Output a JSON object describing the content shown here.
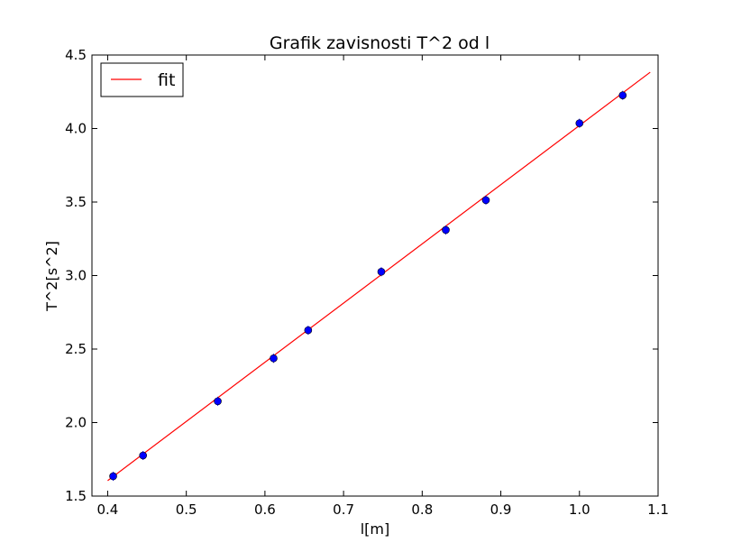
{
  "chart_data": {
    "type": "scatter",
    "title": "Grafik zavisnosti T^2 od l",
    "xlabel": "l[m]",
    "ylabel": "T^2[s^2]",
    "xlim": [
      0.38,
      1.1
    ],
    "ylim": [
      1.5,
      4.5
    ],
    "xticks": [
      0.4,
      0.5,
      0.6,
      0.7,
      0.8,
      0.9,
      1.0,
      1.1
    ],
    "xtick_labels": [
      "0.4",
      "0.5",
      "0.6",
      "0.7",
      "0.8",
      "0.9",
      "1.0",
      "1.1"
    ],
    "yticks": [
      1.5,
      2.0,
      2.5,
      3.0,
      3.5,
      4.0,
      4.5
    ],
    "ytick_labels": [
      "1.5",
      "2.0",
      "2.5",
      "3.0",
      "3.5",
      "4.0",
      "4.5"
    ],
    "grid": false,
    "legend": {
      "position": "top-left",
      "entries": [
        "fit"
      ]
    },
    "series": [
      {
        "kind": "points",
        "color": "#0000ff",
        "x": [
          0.407,
          0.445,
          0.54,
          0.611,
          0.655,
          0.748,
          0.83,
          0.881,
          1.0,
          1.055
        ],
        "y": [
          1.635,
          1.776,
          2.145,
          2.437,
          2.628,
          3.026,
          3.31,
          3.513,
          4.036,
          4.226
        ]
      },
      {
        "kind": "line",
        "name": "fit",
        "color": "#ff0000",
        "x": [
          0.4,
          1.09
        ],
        "y": [
          1.605,
          4.383
        ]
      }
    ]
  }
}
